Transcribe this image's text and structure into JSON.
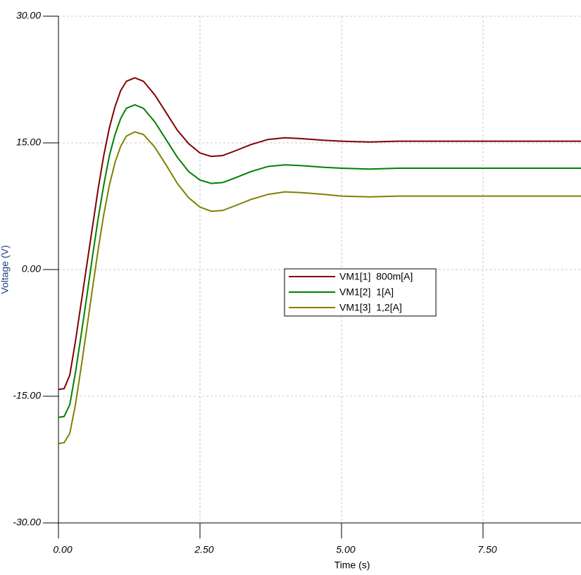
{
  "chart_data": {
    "type": "line",
    "x_label": "Time (s)",
    "y_label": "Voltage (V)",
    "x": [
      0,
      0.1,
      0.2,
      0.3,
      0.4,
      0.5,
      0.6,
      0.7,
      0.8,
      0.9,
      1.0,
      1.1,
      1.2,
      1.35,
      1.5,
      1.7,
      1.9,
      2.1,
      2.3,
      2.5,
      2.7,
      2.9,
      3.1,
      3.4,
      3.7,
      4.0,
      4.3,
      4.7,
      5.0,
      5.5,
      6,
      7,
      8,
      9.23
    ],
    "series": [
      {
        "name": "VM1[1]  800m[A]",
        "color": "#800000",
        "values": [
          -14.2,
          -14.1,
          -12.5,
          -8.5,
          -4,
          0.5,
          5,
          9.5,
          13.5,
          16.8,
          19.3,
          21.2,
          22.3,
          22.7,
          22.3,
          20.7,
          18.6,
          16.5,
          14.9,
          13.8,
          13.4,
          13.5,
          14.0,
          14.8,
          15.4,
          15.6,
          15.5,
          15.3,
          15.2,
          15.1,
          15.2,
          15.2,
          15.2,
          15.2
        ]
      },
      {
        "name": "VM1[2]  1[A]",
        "color": "#008000",
        "values": [
          -17.5,
          -17.4,
          -16,
          -12.2,
          -7.8,
          -3.2,
          1.5,
          6,
          10,
          13.5,
          16,
          17.9,
          19.1,
          19.5,
          19.1,
          17.5,
          15.4,
          13.3,
          11.6,
          10.6,
          10.2,
          10.3,
          10.8,
          11.6,
          12.2,
          12.4,
          12.3,
          12.1,
          12.0,
          11.9,
          12,
          12,
          12,
          12
        ]
      },
      {
        "name": "VM1[3]  1,2[A]",
        "color": "#808000",
        "values": [
          -20.6,
          -20.5,
          -19.4,
          -16,
          -11.6,
          -7,
          -2.3,
          2.3,
          6.5,
          10,
          12.7,
          14.6,
          15.8,
          16.3,
          16,
          14.5,
          12.4,
          10.2,
          8.5,
          7.4,
          6.9,
          7.0,
          7.5,
          8.3,
          8.9,
          9.2,
          9.1,
          8.9,
          8.7,
          8.6,
          8.7,
          8.7,
          8.7,
          8.7
        ]
      }
    ],
    "xlim": [
      0,
      9.23
    ],
    "ylim": [
      -30,
      30
    ],
    "xticks": [
      {
        "value": 0,
        "label": "0.00"
      },
      {
        "value": 2.5,
        "label": "2.50"
      },
      {
        "value": 5,
        "label": "5.00"
      },
      {
        "value": 7.5,
        "label": "7.50"
      }
    ],
    "yticks": [
      {
        "value": -30,
        "label": "-30.00"
      },
      {
        "value": -15,
        "label": "-15.00"
      },
      {
        "value": 0,
        "label": "0.00"
      },
      {
        "value": 15,
        "label": "15.00"
      },
      {
        "value": 30,
        "label": "30.00"
      }
    ],
    "grid": true
  }
}
